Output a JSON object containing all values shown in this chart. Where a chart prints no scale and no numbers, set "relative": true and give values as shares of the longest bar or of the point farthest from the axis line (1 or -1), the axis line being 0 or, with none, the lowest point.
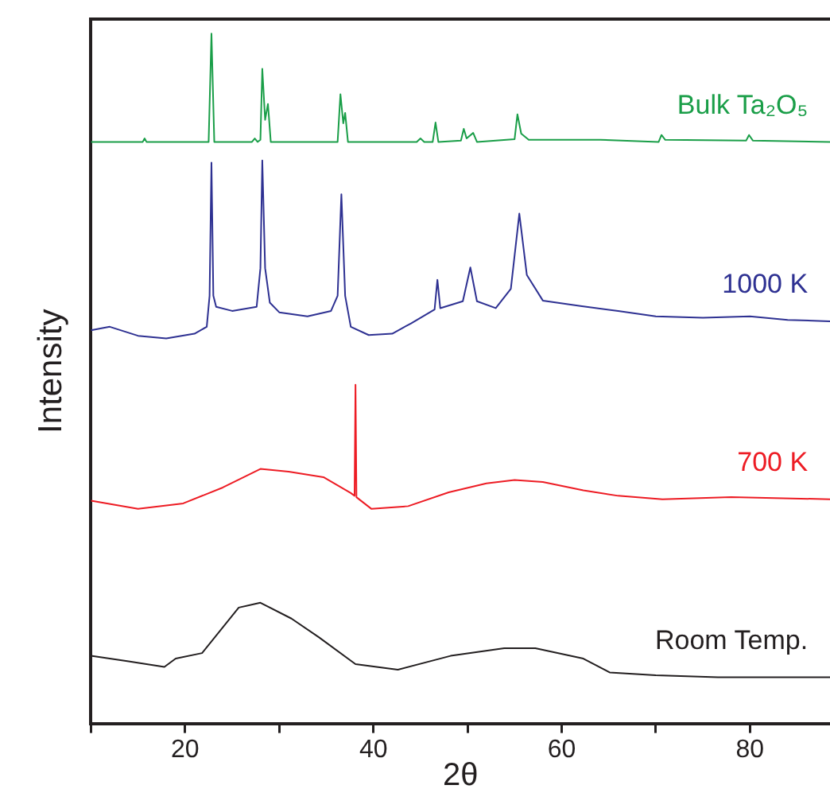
{
  "chart_data": {
    "type": "line",
    "relative": true,
    "xlabel": "2θ",
    "ylabel": "Intensity",
    "xlim": [
      10,
      88.5
    ],
    "xticks": [
      {
        "value": 10,
        "label": null
      },
      20,
      {
        "value": 30,
        "label": null
      },
      40,
      {
        "value": 50,
        "label": null
      },
      60,
      {
        "value": 70,
        "label": null
      },
      80
    ],
    "grid": false,
    "legend": false,
    "marker": "none",
    "line_style": "solid",
    "series": [
      {
        "name": "Bulk Ta₂O₅",
        "color": "#1a9e48",
        "x": [
          10,
          15.5,
          15.7,
          15.9,
          22.5,
          22.8,
          23.1,
          27.1,
          27.4,
          27.7,
          28.0,
          28.2,
          28.5,
          28.8,
          29.1,
          36.2,
          36.5,
          36.8,
          37.0,
          37.3,
          44.6,
          45.0,
          45.4,
          46.3,
          46.6,
          46.9,
          49.3,
          49.6,
          49.9,
          50.6,
          51.0,
          55.0,
          55.3,
          55.7,
          56.5,
          64.1,
          70.3,
          70.6,
          71.0,
          79.6,
          79.9,
          80.3,
          88.5
        ],
        "values": [
          0.843,
          0.843,
          0.848,
          0.843,
          0.843,
          1.0,
          0.843,
          0.843,
          0.848,
          0.843,
          0.846,
          0.949,
          0.875,
          0.898,
          0.843,
          0.843,
          0.912,
          0.87,
          0.885,
          0.843,
          0.843,
          0.848,
          0.843,
          0.843,
          0.871,
          0.843,
          0.845,
          0.862,
          0.848,
          0.856,
          0.843,
          0.847,
          0.883,
          0.855,
          0.846,
          0.846,
          0.843,
          0.853,
          0.846,
          0.845,
          0.853,
          0.845,
          0.843
        ]
      },
      {
        "name": "1000 K",
        "color": "#2e3192",
        "x": [
          10,
          12,
          15,
          18,
          21,
          22.3,
          22.6,
          22.8,
          23.0,
          23.3,
          25,
          27.6,
          28.0,
          28.2,
          28.5,
          29,
          30,
          33,
          35.5,
          36.2,
          36.6,
          37.0,
          37.6,
          39.5,
          42,
          44,
          46.5,
          46.8,
          47.1,
          49.5,
          50.3,
          51,
          53,
          54.6,
          55.5,
          56.3,
          58,
          62,
          66,
          70,
          75,
          80,
          84,
          88.5
        ],
        "values": [
          0.57,
          0.575,
          0.562,
          0.558,
          0.565,
          0.575,
          0.62,
          0.813,
          0.62,
          0.604,
          0.598,
          0.604,
          0.66,
          0.816,
          0.66,
          0.61,
          0.596,
          0.59,
          0.598,
          0.62,
          0.767,
          0.62,
          0.575,
          0.563,
          0.565,
          0.58,
          0.6,
          0.643,
          0.602,
          0.612,
          0.661,
          0.612,
          0.602,
          0.63,
          0.739,
          0.65,
          0.613,
          0.605,
          0.598,
          0.59,
          0.588,
          0.59,
          0.585,
          0.583
        ]
      },
      {
        "name": "700 K",
        "color": "#ed1c24",
        "x": [
          10,
          15,
          19.8,
          24,
          28,
          31,
          34.7,
          37.6,
          38.0,
          38.1,
          38.2,
          39.8,
          43.7,
          48,
          52,
          55,
          58,
          62.3,
          66,
          70.7,
          78,
          88.5
        ],
        "values": [
          0.323,
          0.311,
          0.319,
          0.342,
          0.369,
          0.365,
          0.357,
          0.334,
          0.33,
          0.491,
          0.328,
          0.311,
          0.315,
          0.335,
          0.348,
          0.353,
          0.35,
          0.338,
          0.33,
          0.325,
          0.328,
          0.325
        ]
      },
      {
        "name": "Room Temp.",
        "color": "#231f20",
        "x": [
          10,
          14,
          17.8,
          19,
          21.8,
          25.7,
          28,
          31.3,
          34.2,
          38.1,
          42.6,
          48.2,
          53.9,
          57.2,
          62.3,
          65.1,
          70,
          76.6,
          88.5
        ],
        "values": [
          0.098,
          0.09,
          0.082,
          0.094,
          0.102,
          0.168,
          0.175,
          0.152,
          0.125,
          0.086,
          0.078,
          0.098,
          0.109,
          0.109,
          0.094,
          0.074,
          0.07,
          0.067,
          0.067
        ]
      }
    ]
  }
}
